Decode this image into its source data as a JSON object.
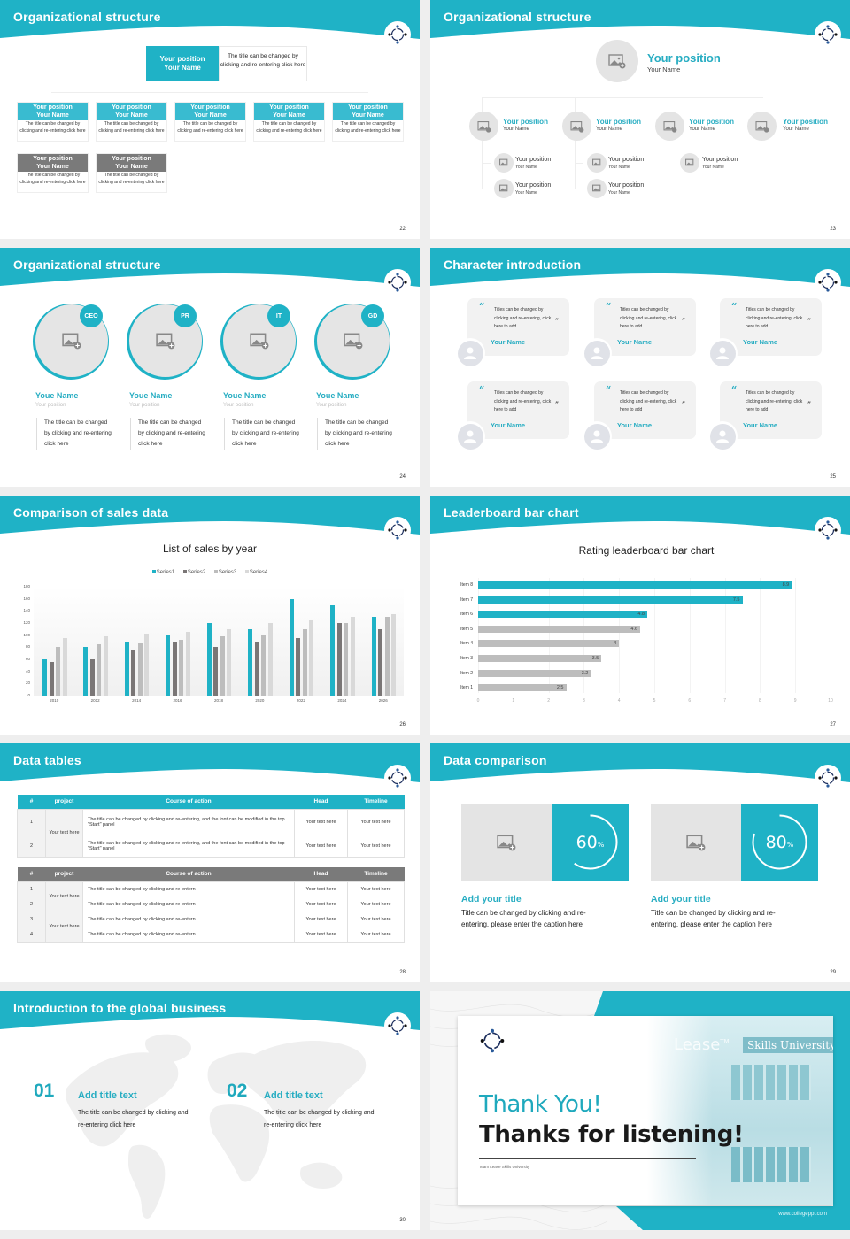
{
  "colors": {
    "teal": "#1fb2c6",
    "teal_text": "#27adc2",
    "grey_dark": "#7a7a7a",
    "grey_bar": "#bdbdbd",
    "grey_light": "#e4e4e4"
  },
  "slides": {
    "s22": {
      "title": "Organizational structure",
      "page": "22",
      "top": {
        "position": "Your position",
        "name": "Your Name",
        "desc": "The title can be changed by clicking and re-entering click here"
      },
      "row1": [
        {
          "position": "Your position",
          "name": "Your Name",
          "desc": "The title can be changed by clicking and re-entering click here"
        },
        {
          "position": "Your position",
          "name": "Your Name",
          "desc": "The title can be changed by clicking and re-entering click here"
        },
        {
          "position": "Your position",
          "name": "Your Name",
          "desc": "The title can be changed by clicking and re-entering click here"
        },
        {
          "position": "Your position",
          "name": "Your Name",
          "desc": "The title can be changed by clicking and re-entering click here"
        },
        {
          "position": "Your position",
          "name": "Your Name",
          "desc": "The title can be changed by clicking and re-entering click here"
        }
      ],
      "row2": [
        {
          "position": "Your position",
          "name": "Your Name",
          "desc": "The title can be changed by clicking and re-entering click here"
        },
        {
          "position": "Your position",
          "name": "Your Name",
          "desc": "The title can be changed by clicking and re-entering click here"
        }
      ]
    },
    "s23": {
      "title": "Organizational structure",
      "page": "23",
      "top": {
        "position": "Your position",
        "name": "Your Name"
      },
      "level1": [
        {
          "position": "Your position",
          "name": "Your Name"
        },
        {
          "position": "Your position",
          "name": "Your Name"
        },
        {
          "position": "Your position",
          "name": "Your Name"
        },
        {
          "position": "Your position",
          "name": "Your Name"
        }
      ],
      "level2": [
        {
          "position": "Your position",
          "name": "Your Name"
        },
        {
          "position": "Your position",
          "name": "Your Name"
        },
        {
          "position": "Your position",
          "name": "Your Name"
        },
        {
          "position": "Your position",
          "name": "Your Name"
        },
        {
          "position": "Your position",
          "name": "Your Name"
        }
      ]
    },
    "s24": {
      "title": "Organizational structure",
      "page": "24",
      "people": [
        {
          "badge": "CEO",
          "name": "Youe Name",
          "position": "Your position",
          "desc": "The title can be changed by clicking and re-entering click here"
        },
        {
          "badge": "PR",
          "name": "Youe Name",
          "position": "Your position",
          "desc": "The title can be changed by clicking and re-entering click here"
        },
        {
          "badge": "IT",
          "name": "Youe Name",
          "position": "Your position",
          "desc": "The title can be changed by clicking and re-entering click here"
        },
        {
          "badge": "GD",
          "name": "Youe Name",
          "position": "Your position",
          "desc": "The title can be changed by clicking and re-entering click here"
        }
      ]
    },
    "s25": {
      "title": "Character introduction",
      "page": "25",
      "cards": [
        {
          "quote": "Titles can be changed by clicking and re-entering, click here to add",
          "name": "Your Name"
        },
        {
          "quote": "Titles can be changed by clicking and re-entering, click here to add",
          "name": "Your Name"
        },
        {
          "quote": "Titles can be changed by clicking and re-entering, click here to add",
          "name": "Your Name"
        },
        {
          "quote": "Titles can be changed by clicking and re-entering, click here to add",
          "name": "Your Name"
        },
        {
          "quote": "Titles can be changed by clicking and re-entering, click here to add",
          "name": "Your Name"
        },
        {
          "quote": "Titles can be changed by clicking and re-entering, click here to add",
          "name": "Your Name"
        }
      ],
      "open_quote": "“",
      "close_quote": "”"
    },
    "s26": {
      "title": "Comparison of sales data",
      "page": "26"
    },
    "s27": {
      "title": "Leaderboard bar chart",
      "page": "27"
    },
    "s28": {
      "title": "Data tables",
      "page": "28",
      "headers": [
        "#",
        "project",
        "Course of action",
        "Head",
        "Timeline"
      ],
      "table1": {
        "project": "Your text here",
        "rows": [
          {
            "num": "1",
            "action": "The title can be changed by clicking and re-entering, and the font can be modified in the top \"Start\" panel",
            "head": "Your text here",
            "timeline": "Your text here"
          },
          {
            "num": "2",
            "action": "The title can be changed by clicking and re-entering, and the font can be modified in the top \"Start\" panel",
            "head": "Your text here",
            "timeline": "Your text here"
          }
        ]
      },
      "table2": {
        "projects": [
          "Your text here",
          "Your text here"
        ],
        "rows": [
          {
            "num": "1",
            "action": "The title can be changed by clicking and re-entern",
            "head": "Your text here",
            "timeline": "Your text here"
          },
          {
            "num": "2",
            "action": "The title can be changed by clicking and re-entern",
            "head": "Your text here",
            "timeline": "Your text here"
          },
          {
            "num": "3",
            "action": "The title can be changed by clicking and re-entern",
            "head": "Your text here",
            "timeline": "Your text here"
          },
          {
            "num": "4",
            "action": "The title can be changed by clicking and re-entern",
            "head": "Your text here",
            "timeline": "Your text here"
          }
        ]
      }
    },
    "s29": {
      "title": "Data comparison",
      "page": "29",
      "items": [
        {
          "value": "60",
          "unit": "%",
          "title": "Add your title",
          "desc": "Title can be changed by clicking and re-entering, please enter the caption here"
        },
        {
          "value": "80",
          "unit": "%",
          "title": "Add your title",
          "desc": "Title can be changed by clicking and re-entering, please enter the caption here"
        }
      ]
    },
    "s30": {
      "title": "Introduction to the global business",
      "page": "30",
      "items": [
        {
          "num": "01",
          "title": "Add title text",
          "desc": "The title can be changed by clicking and re-entering click here"
        },
        {
          "num": "02",
          "title": "Add title text",
          "desc": "The title can be changed by clicking and re-entering click here"
        }
      ]
    },
    "s31": {
      "thank": "Thank You!",
      "thanks": "Thanks for listening!",
      "team": "Team Lease Skills University",
      "website": "www.collegeppt.com",
      "sign_lease": "Lease",
      "sign_tm": "TM",
      "sign_skills": "Skills University"
    }
  },
  "chart_data": [
    {
      "type": "bar",
      "title": "List of sales by year",
      "xlabel": "",
      "ylabel": "",
      "categories": [
        "2010",
        "2012",
        "2014",
        "2016",
        "2018",
        "2020",
        "2022",
        "2024",
        "2026"
      ],
      "series": [
        {
          "name": "Series1",
          "color": "#1fb2c6",
          "values": [
            60,
            80,
            90,
            100,
            120,
            110,
            160,
            150,
            130
          ]
        },
        {
          "name": "Series2",
          "color": "#7a7676",
          "values": [
            55,
            60,
            75,
            90,
            80,
            90,
            95,
            120,
            110
          ]
        },
        {
          "name": "Series3",
          "color": "#bdbdbd",
          "values": [
            80,
            85,
            88,
            92,
            98,
            100,
            110,
            120,
            130
          ]
        },
        {
          "name": "Series4",
          "color": "#d9d9d9",
          "values": [
            95,
            98,
            102,
            105,
            110,
            120,
            126,
            130,
            135
          ]
        }
      ],
      "ylim": [
        0,
        180
      ],
      "yticks": [
        0,
        20,
        40,
        60,
        80,
        100,
        120,
        140,
        160,
        180
      ],
      "grid": false,
      "legend_position": "top"
    },
    {
      "type": "bar",
      "orientation": "horizontal",
      "title": "Rating leaderboard bar chart",
      "categories": [
        "Item 1",
        "Item 2",
        "Item 3",
        "Item 4",
        "Item 5",
        "Item 6",
        "Item 7",
        "Item 8"
      ],
      "values": [
        2.5,
        3.2,
        3.5,
        4,
        4.6,
        4.8,
        7.5,
        8.9
      ],
      "highlight": [
        "Item 6",
        "Item 7",
        "Item 8"
      ],
      "xlim": [
        0,
        10
      ],
      "xticks": [
        0,
        1,
        2,
        3,
        4,
        5,
        6,
        7,
        8,
        9,
        10
      ],
      "grid": true
    }
  ]
}
